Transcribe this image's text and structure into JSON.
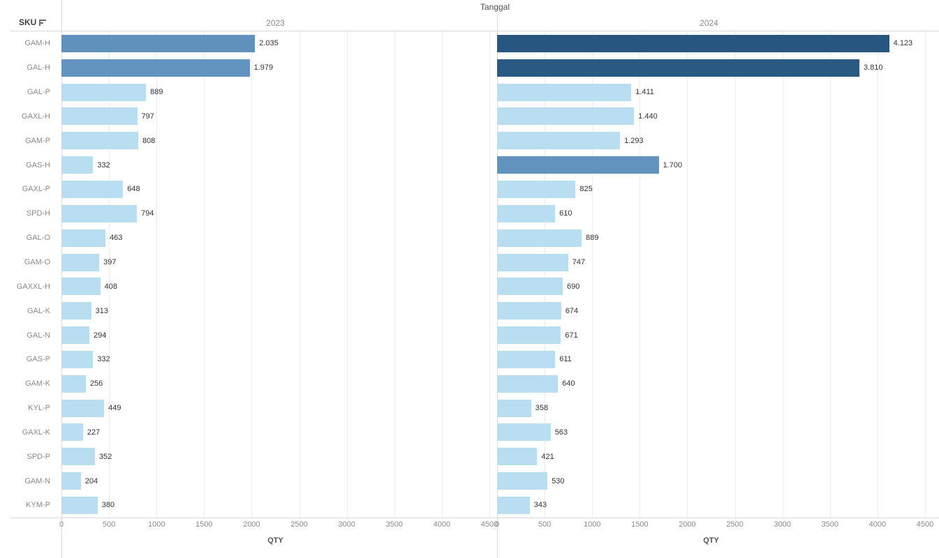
{
  "header": {
    "column_field_title": "Tanggal",
    "row_field_label": "SKU",
    "sort_icon": "sort-descending-icon"
  },
  "chart_data": {
    "type": "bar",
    "orientation": "horizontal",
    "title": "Tanggal",
    "row_field": "SKU",
    "xlabel": "QTY",
    "xlim": [
      0,
      4500
    ],
    "ticks": [
      0,
      500,
      1000,
      1500,
      2000,
      2500,
      3000,
      3500,
      4000,
      4500
    ],
    "grid": "vertical",
    "legend_position": "none",
    "categories": [
      "GAM-H",
      "GAL-H",
      "GAL-P",
      "GAXL-H",
      "GAM-P",
      "GAS-H",
      "GAXL-P",
      "SPD-H",
      "GAL-O",
      "GAM-O",
      "GAXXL-H",
      "GAL-K",
      "GAL-N",
      "GAS-P",
      "GAM-K",
      "KYL-P",
      "GAXL-K",
      "SPD-P",
      "GAM-N",
      "KYM-P"
    ],
    "series": [
      {
        "name": "2023",
        "values": [
          2035,
          1979,
          889,
          797,
          808,
          332,
          648,
          794,
          463,
          397,
          408,
          313,
          294,
          332,
          256,
          449,
          227,
          352,
          204,
          380
        ],
        "labels": [
          "2.035",
          "1.979",
          "889",
          "797",
          "808",
          "332",
          "648",
          "794",
          "463",
          "397",
          "408",
          "313",
          "294",
          "332",
          "256",
          "449",
          "227",
          "352",
          "204",
          "380"
        ],
        "colors": [
          "#6090bc",
          "#6393bf",
          "#b9ddf1",
          "#b9ddf1",
          "#b9ddf1",
          "#b9ddf1",
          "#b9ddf1",
          "#b9ddf1",
          "#b9ddf1",
          "#b9ddf1",
          "#b9ddf1",
          "#b9ddf1",
          "#b9ddf1",
          "#b9ddf1",
          "#b9ddf1",
          "#b9ddf1",
          "#b9ddf1",
          "#b9ddf1",
          "#b9ddf1",
          "#b9ddf1"
        ]
      },
      {
        "name": "2024",
        "values": [
          4123,
          3810,
          1411,
          1440,
          1293,
          1700,
          825,
          610,
          889,
          747,
          690,
          674,
          671,
          611,
          640,
          358,
          563,
          421,
          530,
          343
        ],
        "labels": [
          "4.123",
          "3.810",
          "1.411",
          "1.440",
          "1.293",
          "1.700",
          "825",
          "610",
          "889",
          "747",
          "690",
          "674",
          "671",
          "611",
          "640",
          "358",
          "563",
          "421",
          "530",
          "343"
        ],
        "colors": [
          "#27567e",
          "#2a5a82",
          "#b9ddf1",
          "#b9ddf1",
          "#b9ddf1",
          "#6292be",
          "#b9ddf1",
          "#b9ddf1",
          "#b9ddf1",
          "#b9ddf1",
          "#b9ddf1",
          "#b9ddf1",
          "#b9ddf1",
          "#b9ddf1",
          "#b9ddf1",
          "#b9ddf1",
          "#b9ddf1",
          "#b9ddf1",
          "#b9ddf1",
          "#b9ddf1"
        ]
      }
    ],
    "palette": {
      "low": "#b9ddf1",
      "mid": "#6292be",
      "high": "#26567e"
    }
  }
}
